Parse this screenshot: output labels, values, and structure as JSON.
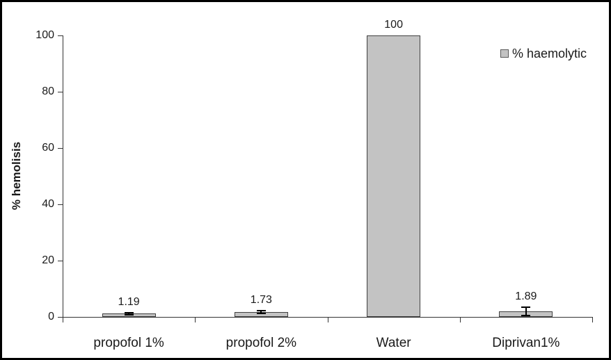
{
  "chart_data": {
    "type": "bar",
    "title": "",
    "categories": [
      "propofol 1%",
      "propofol 2%",
      "Water",
      "Diprivan1%"
    ],
    "series": [
      {
        "name": "% haemolytic",
        "values": [
          1.19,
          1.73,
          100,
          1.89
        ],
        "errors": [
          0.4,
          0.4,
          0,
          1.5
        ]
      }
    ],
    "value_labels": [
      "1.19",
      "1.73",
      "100",
      "1.89"
    ],
    "xlabel": "",
    "ylabel": "% hemolisis",
    "ylim": [
      0,
      100
    ],
    "yticks": [
      0,
      20,
      40,
      60,
      80,
      100
    ],
    "grid": false,
    "legend": {
      "position": "top-right",
      "entries": [
        "% haemolytic"
      ]
    },
    "colors": {
      "bar_fill": "#c3c3c3",
      "bar_border": "#404040",
      "axis": "#333333",
      "text": "#1a1a1a",
      "frame_border": "#000000"
    }
  }
}
